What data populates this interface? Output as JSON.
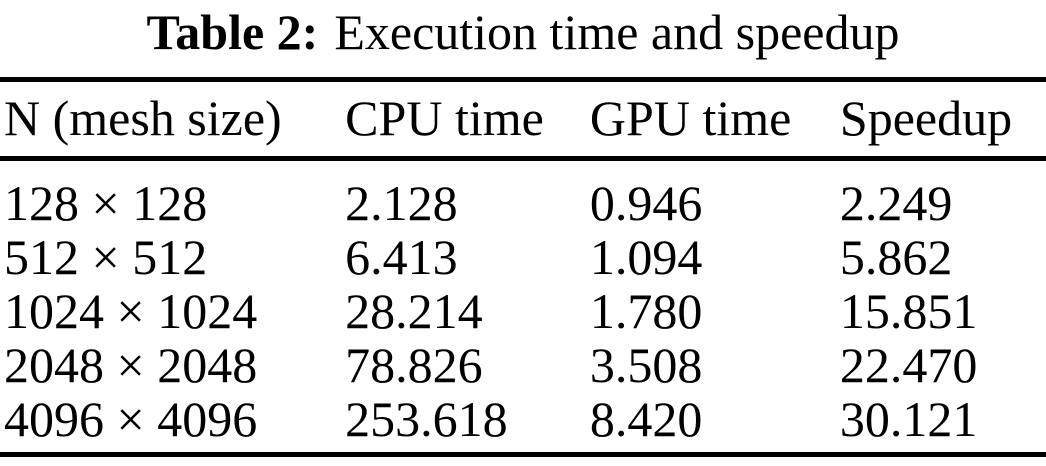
{
  "caption": {
    "label": "Table 2:",
    "text": "Execution time and speedup"
  },
  "table": {
    "columns": [
      "N (mesh size)",
      "CPU time",
      "GPU time",
      "Speedup"
    ],
    "rows": [
      [
        "128 × 128",
        "2.128",
        "0.946",
        "2.249"
      ],
      [
        "512 × 512",
        "6.413",
        "1.094",
        "5.862"
      ],
      [
        "1024 × 1024",
        "28.214",
        "1.780",
        "15.851"
      ],
      [
        "2048 × 2048",
        "78.826",
        "3.508",
        "22.470"
      ],
      [
        "4096 × 4096",
        "253.618",
        "8.420",
        "30.121"
      ]
    ]
  },
  "chart_data": {
    "type": "table",
    "title": "Table 2: Execution time and speedup",
    "columns": [
      "N (mesh size)",
      "CPU time",
      "GPU time",
      "Speedup"
    ],
    "rows": [
      [
        "128 × 128",
        2.128,
        0.946,
        2.249
      ],
      [
        "512 × 512",
        6.413,
        1.094,
        5.862
      ],
      [
        "1024 × 1024",
        28.214,
        1.78,
        15.851
      ],
      [
        "2048 × 2048",
        78.826,
        3.508,
        22.47
      ],
      [
        "4096 × 4096",
        253.618,
        8.42,
        30.121
      ]
    ]
  },
  "colors": {
    "text": "#000000",
    "background": "#ffffff",
    "rule": "#000000"
  }
}
